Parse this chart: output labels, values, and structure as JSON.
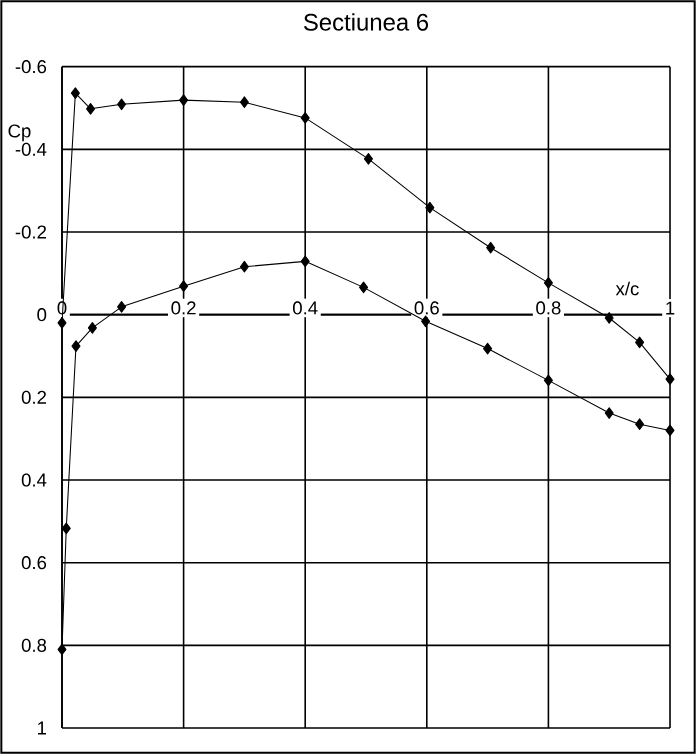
{
  "chart_data": {
    "type": "line",
    "title": "Sectiunea 6",
    "xlabel": "x/c",
    "ylabel": "Cp",
    "xlim": [
      0,
      1
    ],
    "ylim": [
      1,
      -0.6
    ],
    "xticks": [
      0,
      0.2,
      0.4,
      0.6,
      0.8,
      1
    ],
    "yticks": [
      -0.6,
      -0.4,
      -0.2,
      0,
      0.2,
      0.4,
      0.6,
      0.8,
      1
    ],
    "grid": true,
    "marker": "diamond",
    "line_style": "solid",
    "series": [
      {
        "color": "#000000",
        "x": [
          0,
          0.022,
          0.047,
          0.098,
          0.2,
          0.3,
          0.4,
          0.504,
          0.605,
          0.705,
          0.8,
          0.9,
          0.95,
          1.0
        ],
        "values": [
          0.02,
          -0.536,
          -0.498,
          -0.509,
          -0.519,
          -0.514,
          -0.476,
          -0.377,
          -0.259,
          -0.162,
          -0.077,
          0.008,
          0.067,
          0.156
        ]
      },
      {
        "color": "#000000",
        "x": [
          0,
          0.007,
          0.023,
          0.05,
          0.098,
          0.2,
          0.3,
          0.4,
          0.496,
          0.598,
          0.7,
          0.8,
          0.9,
          0.95,
          1.0
        ],
        "values": [
          0.81,
          0.517,
          0.076,
          0.032,
          -0.019,
          -0.069,
          -0.116,
          -0.129,
          -0.066,
          0.016,
          0.082,
          0.159,
          0.238,
          0.265,
          0.28
        ]
      }
    ]
  }
}
